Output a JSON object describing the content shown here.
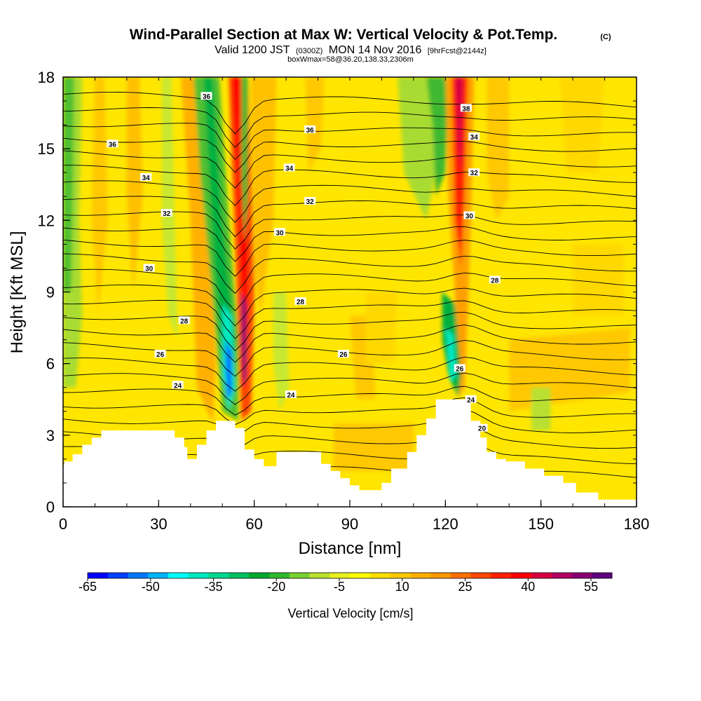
{
  "title": {
    "main": "Wind-Parallel Section at Max W: Vertical Velocity & Pot.Temp.",
    "copyright": "(C)",
    "line2_a": "Valid 1200 JST",
    "line2_b": "(0300Z)",
    "line2_c": "MON 14 Nov 2016",
    "line2_d": "[9hrFcst@2144z]",
    "line3": "boxWmax=58@36.20,138.33,2306m"
  },
  "chart_data": {
    "type": "heatmap",
    "xlabel": "Distance [nm]",
    "ylabel": "Height [Kft MSL]",
    "xlim": [
      0,
      180
    ],
    "ylim": [
      0,
      18
    ],
    "x_ticks": [
      0,
      30,
      60,
      90,
      120,
      150,
      180
    ],
    "y_ticks": [
      0,
      3,
      6,
      9,
      12,
      15,
      18
    ],
    "colorbar": {
      "title": "Vertical Velocity [cm/s]",
      "tick_labels": [
        "-65",
        "-50",
        "-35",
        "-20",
        "-5",
        "10",
        "25",
        "40",
        "55"
      ],
      "levels": [
        -65,
        -60,
        -55,
        -50,
        -45,
        -40,
        -35,
        -30,
        -25,
        -20,
        -15,
        -10,
        -5,
        0,
        5,
        10,
        15,
        20,
        25,
        30,
        35,
        40,
        45,
        50,
        55,
        60
      ],
      "colors": [
        "#0000ff",
        "#0040ff",
        "#0078ff",
        "#00b4ff",
        "#00ffff",
        "#00e8c0",
        "#00d890",
        "#00c060",
        "#00a830",
        "#30b830",
        "#78d030",
        "#b8e030",
        "#e8f020",
        "#ffff00",
        "#ffe000",
        "#ffc800",
        "#ffb000",
        "#ff9800",
        "#ff7000",
        "#ff4800",
        "#ff2000",
        "#ff0000",
        "#d80040",
        "#b00060",
        "#880070",
        "#600080"
      ]
    },
    "updrafts": [
      {
        "x": 52,
        "y_range": [
          3.5,
          18
        ],
        "w_min": -60,
        "w_max": 58
      },
      {
        "x": 124,
        "y_range": [
          4.5,
          18
        ],
        "w_min": -35,
        "w_max": 45
      }
    ],
    "terrain_kft": [
      [
        0,
        1.6
      ],
      [
        0.5,
        1.9
      ],
      [
        1.5,
        1.9
      ],
      [
        1.5,
        1.9
      ],
      [
        3,
        1.9
      ],
      [
        3,
        2.2
      ],
      [
        6,
        2.2
      ],
      [
        6,
        2.6
      ],
      [
        9,
        2.6
      ],
      [
        9,
        2.9
      ],
      [
        12,
        2.9
      ],
      [
        12,
        3.2
      ],
      [
        35,
        3.2
      ],
      [
        35,
        2.9
      ],
      [
        38,
        2.9
      ],
      [
        38,
        2.5
      ],
      [
        39,
        2.5
      ],
      [
        39,
        2.0
      ],
      [
        42,
        2.0
      ],
      [
        42,
        2.6
      ],
      [
        45,
        2.6
      ],
      [
        45,
        3.2
      ],
      [
        48,
        3.2
      ],
      [
        48,
        3.6
      ],
      [
        54,
        3.6
      ],
      [
        54,
        3.3
      ],
      [
        57,
        3.3
      ],
      [
        57,
        2.4
      ],
      [
        60,
        2.4
      ],
      [
        60,
        2.0
      ],
      [
        63,
        2.0
      ],
      [
        63,
        1.7
      ],
      [
        67,
        1.7
      ],
      [
        67,
        2.3
      ],
      [
        81,
        2.3
      ],
      [
        81,
        1.8
      ],
      [
        84,
        1.8
      ],
      [
        84,
        1.5
      ],
      [
        87,
        1.5
      ],
      [
        87,
        1.2
      ],
      [
        90,
        1.2
      ],
      [
        90,
        0.9
      ],
      [
        93,
        0.9
      ],
      [
        93,
        0.7
      ],
      [
        100,
        0.7
      ],
      [
        100,
        1.0
      ],
      [
        103,
        1.0
      ],
      [
        103,
        1.6
      ],
      [
        108,
        1.6
      ],
      [
        108,
        2.3
      ],
      [
        111,
        2.3
      ],
      [
        111,
        3.0
      ],
      [
        114,
        3.0
      ],
      [
        114,
        3.7
      ],
      [
        117,
        3.7
      ],
      [
        117,
        4.5
      ],
      [
        128,
        4.5
      ],
      [
        128,
        3.6
      ],
      [
        131,
        3.6
      ],
      [
        131,
        2.9
      ],
      [
        133,
        2.9
      ],
      [
        133,
        2.3
      ],
      [
        136,
        2.3
      ],
      [
        136,
        2.0
      ],
      [
        139,
        2.0
      ],
      [
        139,
        1.9
      ],
      [
        145,
        1.9
      ],
      [
        145,
        1.6
      ],
      [
        151,
        1.6
      ],
      [
        151,
        1.3
      ],
      [
        157,
        1.3
      ],
      [
        157,
        1.0
      ],
      [
        161,
        1.0
      ],
      [
        161,
        0.6
      ],
      [
        168,
        0.6
      ],
      [
        168,
        0.3
      ],
      [
        180,
        0.3
      ]
    ],
    "isentropes": [
      20,
      22,
      24,
      26,
      28,
      30,
      32,
      34,
      36,
      38
    ],
    "contour_labels": [
      {
        "text": "36",
        "x": 45,
        "y": 17.2
      },
      {
        "text": "36",
        "x": 15.5,
        "y": 15.2
      },
      {
        "text": "36",
        "x": 77.5,
        "y": 15.8
      },
      {
        "text": "38",
        "x": 126.5,
        "y": 16.7
      },
      {
        "text": "34",
        "x": 26,
        "y": 13.8
      },
      {
        "text": "34",
        "x": 71,
        "y": 14.2
      },
      {
        "text": "34",
        "x": 129,
        "y": 15.5
      },
      {
        "text": "32",
        "x": 32.5,
        "y": 12.3
      },
      {
        "text": "32",
        "x": 77.5,
        "y": 12.8
      },
      {
        "text": "32",
        "x": 129,
        "y": 14.0
      },
      {
        "text": "30",
        "x": 27,
        "y": 10.0
      },
      {
        "text": "30",
        "x": 68,
        "y": 11.5
      },
      {
        "text": "30",
        "x": 127.5,
        "y": 12.2
      },
      {
        "text": "28",
        "x": 38,
        "y": 7.8
      },
      {
        "text": "28",
        "x": 74.5,
        "y": 8.6
      },
      {
        "text": "28",
        "x": 135.5,
        "y": 9.5
      },
      {
        "text": "26",
        "x": 30.5,
        "y": 6.4
      },
      {
        "text": "26",
        "x": 88,
        "y": 6.4
      },
      {
        "text": "26",
        "x": 124.5,
        "y": 5.8
      },
      {
        "text": "24",
        "x": 36,
        "y": 5.1
      },
      {
        "text": "24",
        "x": 71.5,
        "y": 4.7
      },
      {
        "text": "24",
        "x": 128,
        "y": 4.5
      },
      {
        "text": "20",
        "x": 131.5,
        "y": 3.3
      }
    ]
  }
}
